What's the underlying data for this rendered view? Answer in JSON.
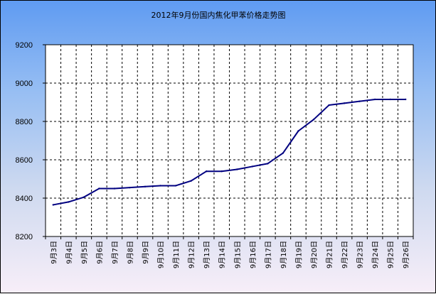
{
  "chart_data": {
    "type": "line",
    "title": "2012年9月份国内焦化甲苯价格走势图",
    "xlabel": "",
    "ylabel": "",
    "ylim": [
      8200,
      9200
    ],
    "yticks": [
      8200,
      8400,
      8600,
      8800,
      9000,
      9200
    ],
    "grid": true,
    "categories": [
      "9月3日",
      "9月4日",
      "9月5日",
      "9月6日",
      "9月7日",
      "9月8日",
      "9月9日",
      "9月10日",
      "9月11日",
      "9月12日",
      "9月13日",
      "9月14日",
      "9月15日",
      "9月16日",
      "9月17日",
      "9月18日",
      "9月19日",
      "9月20日",
      "9月21日",
      "9月22日",
      "9月23日",
      "9月24日",
      "9月25日",
      "9月26日"
    ],
    "series": [
      {
        "values": [
          8365,
          8380,
          8405,
          8450,
          8450,
          8455,
          8460,
          8465,
          8465,
          8490,
          8540,
          8540,
          8550,
          8565,
          8580,
          8635,
          8750,
          8810,
          8885,
          8895,
          8905,
          8915,
          8915,
          8915
        ]
      }
    ],
    "colors": {
      "line": "#000080",
      "plot_background": "#ffffff",
      "grid": "#000000"
    }
  }
}
